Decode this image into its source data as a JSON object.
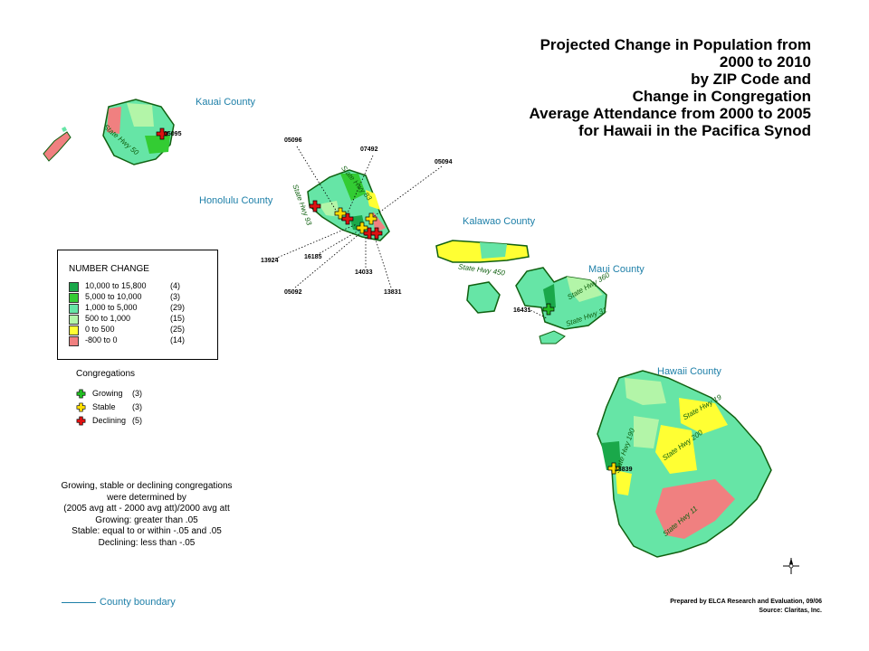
{
  "title_lines": [
    "Projected Change in Population from",
    "2000 to 2010",
    "by ZIP Code and",
    "Change in Congregation",
    "Average Attendance from 2000 to 2005",
    "for Hawaii in the Pacifica Synod"
  ],
  "counties": {
    "kauai": "Kauai County",
    "honolulu": "Honolulu County",
    "kalawao": "Kalawao County",
    "maui": "Maui County",
    "hawaii": "Hawaii County"
  },
  "zip_labels": {
    "z05096": "05096",
    "z07492": "07492",
    "z05094": "05094",
    "z13924": "13924",
    "z16185": "16185",
    "z14033": "14033",
    "z05092": "05092",
    "z13831": "13831",
    "z05095": "05095",
    "z16431": "16431",
    "z13839": "13839"
  },
  "highways": {
    "kauai": "State Hwy 50",
    "oahu_a": "State Hwy 93",
    "oahu_b": "State Hwy 83",
    "molokai": "State Hwy 450",
    "maui_a": "State Hwy 360",
    "maui_b": "State Hwy 31",
    "hawaii_a": "State Hwy 19",
    "hawaii_b": "State Hwy 200",
    "hawaii_c": "State Hwy 11",
    "hawaii_d": "State Hwy 190"
  },
  "legend": {
    "title": "NUMBER CHANGE",
    "rows": [
      {
        "range": "10,000 to 15,800",
        "count": "(4)",
        "color": "#1aa84a"
      },
      {
        "range": "5,000 to 10,000",
        "count": "(3)",
        "color": "#33cc33"
      },
      {
        "range": "1,000 to 5,000",
        "count": "(29)",
        "color": "#66e5a6"
      },
      {
        "range": "500 to 1,000",
        "count": "(15)",
        "color": "#b3f5a8"
      },
      {
        "range": "0 to 500",
        "count": "(25)",
        "color": "#ffff33"
      },
      {
        "range": "-800 to 0",
        "count": "(14)",
        "color": "#f08080"
      }
    ]
  },
  "congregations": {
    "title": "Congregations",
    "rows": [
      {
        "label": "Growing",
        "count": "(3)",
        "color": "#22bb22"
      },
      {
        "label": "Stable",
        "count": "(3)",
        "color": "#ffdd00"
      },
      {
        "label": "Declining",
        "count": "(5)",
        "color": "#dd1111"
      }
    ]
  },
  "notes": [
    "Growing, stable or declining congregations",
    "were determined by",
    "(2005 avg att - 2000 avg att)/2000 avg att",
    "Growing: greater than .05",
    "Stable: equal to or within -.05 and .05",
    "Declining: less than -.05"
  ],
  "boundary_label": "County boundary",
  "credits": {
    "prepared": "Prepared by ELCA Research and Evaluation, 09/06",
    "source": "Source: Claritas, Inc."
  }
}
